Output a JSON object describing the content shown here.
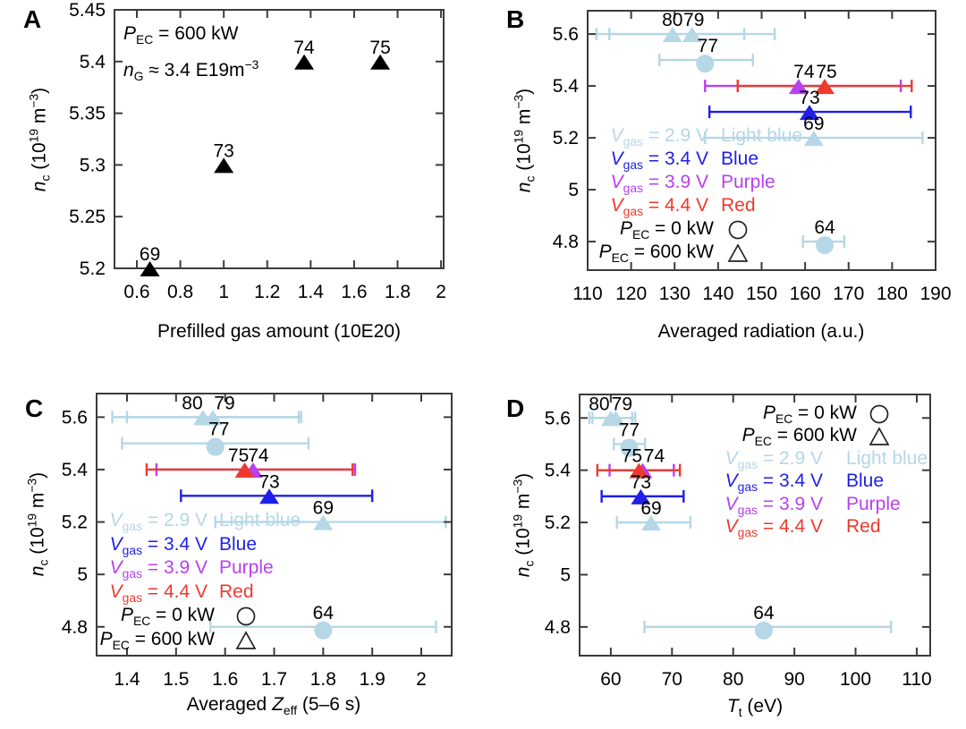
{
  "colors": {
    "black": "#000000",
    "lightblue": "#b5d7e6",
    "blue": "#1f1fe8",
    "purple": "#b840ee",
    "red": "#ee3a2e",
    "axis": "#3b3b3b"
  },
  "chart_data": [
    {
      "panel": "A",
      "type": "scatter",
      "xlabel": "Prefilled gas amount (10E20)",
      "ylabel": "*n*_{c} (10^{19} m^{−3})",
      "xlim": [
        0.497,
        2.012
      ],
      "ylim": [
        5.2,
        5.45
      ],
      "xticks": [
        0.6,
        0.8,
        1.0,
        1.2,
        1.4,
        1.6,
        1.8,
        2.0
      ],
      "xtick_labels": [
        "0.6",
        "0.8",
        "1",
        "1.2",
        "1.4",
        "1.6",
        "1.8",
        "2"
      ],
      "yticks": [
        5.2,
        5.25,
        5.3,
        5.35,
        5.4,
        5.45
      ],
      "ytick_labels": [
        "5.2",
        "5.25",
        "5.3",
        "5.35",
        "5.4",
        "5.45"
      ],
      "annotations": [
        "*P*_{EC} = 600 kW",
        "*n*_{G} ≈ 3.4 E19m^{−3}"
      ],
      "legend": [],
      "points": [
        {
          "label": "69",
          "x": 0.66,
          "y": 5.2,
          "marker": "triangle",
          "color": "black"
        },
        {
          "label": "73",
          "x": 1.0,
          "y": 5.3,
          "marker": "triangle",
          "color": "black"
        },
        {
          "label": "74",
          "x": 1.37,
          "y": 5.4,
          "marker": "triangle",
          "color": "black"
        },
        {
          "label": "75",
          "x": 1.72,
          "y": 5.4,
          "marker": "triangle",
          "color": "black"
        }
      ]
    },
    {
      "panel": "B",
      "type": "scatter",
      "xlabel": "Averaged radiation (a.u.)",
      "ylabel": "*n*_{c} (10^{19} m^{−3})",
      "xlim": [
        110,
        190
      ],
      "ylim": [
        4.69,
        5.69
      ],
      "xticks": [
        110,
        120,
        130,
        140,
        150,
        160,
        170,
        180,
        190
      ],
      "xtick_labels": [
        "110",
        "120",
        "130",
        "140",
        "150",
        "160",
        "170",
        "180",
        "190"
      ],
      "yticks": [
        4.8,
        5.0,
        5.2,
        5.4,
        5.6
      ],
      "ytick_labels": [
        "4.8",
        "5",
        "5.2",
        "5.4",
        "5.6"
      ],
      "annotations": [],
      "legend": [
        {
          "type": "v",
          "label": "*V*_{gas} = 2.9 V",
          "value": "Light blue",
          "color": "lightblue"
        },
        {
          "type": "v",
          "label": "*V*_{gas} = 3.4 V",
          "value": "Blue",
          "color": "blue"
        },
        {
          "type": "v",
          "label": "*V*_{gas} = 3.9 V",
          "value": "Purple",
          "color": "purple"
        },
        {
          "type": "v",
          "label": "*V*_{gas} = 4.4 V",
          "value": "Red",
          "color": "red"
        },
        {
          "type": "p",
          "label": "*P*_{EC} = 0 kW",
          "glyph": "circle",
          "color": "black"
        },
        {
          "type": "p",
          "label": "*P*_{EC} = 600 kW",
          "glyph": "triangle",
          "color": "black"
        }
      ],
      "points": [
        {
          "label": "80",
          "x": 129.5,
          "y": 5.6,
          "err": [
            112,
            146
          ],
          "marker": "triangle",
          "color": "lightblue"
        },
        {
          "label": "79",
          "x": 134,
          "y": 5.6,
          "err": [
            115,
            153
          ],
          "marker": "triangle",
          "color": "lightblue",
          "lox": 2
        },
        {
          "label": "77",
          "x": 137,
          "y": 5.5,
          "err": [
            126.5,
            148
          ],
          "marker": "circle",
          "color": "lightblue",
          "lox": 3
        },
        {
          "label": "74",
          "x": 158.5,
          "y": 5.4,
          "err": [
            137,
            182
          ],
          "marker": "triangle",
          "color": "purple",
          "lox": 6
        },
        {
          "label": "75",
          "x": 164.5,
          "y": 5.4,
          "err": [
            144.5,
            184.5
          ],
          "marker": "triangle",
          "color": "red",
          "lox": 2
        },
        {
          "label": "73",
          "x": 161,
          "y": 5.3,
          "err": [
            138,
            184.3
          ],
          "marker": "triangle",
          "color": "blue"
        },
        {
          "label": "69",
          "x": 162,
          "y": 5.2,
          "err": [
            137,
            187
          ],
          "marker": "triangle",
          "color": "lightblue"
        },
        {
          "label": "64",
          "x": 164.5,
          "y": 4.8,
          "err": [
            159.5,
            169
          ],
          "marker": "circle",
          "color": "lightblue"
        }
      ]
    },
    {
      "panel": "C",
      "type": "scatter",
      "xlabel": "Averaged *Z*_{eff} (5–6 s)",
      "ylabel": "*n*_{c} (10^{19} m^{−3})",
      "xlim": [
        1.338,
        2.062
      ],
      "ylim": [
        4.69,
        5.69
      ],
      "xticks": [
        1.4,
        1.5,
        1.6,
        1.7,
        1.8,
        1.9,
        2.0
      ],
      "xtick_labels": [
        "1.4",
        "1.5",
        "1.6",
        "1.7",
        "1.8",
        "1.9",
        "2"
      ],
      "yticks": [
        4.8,
        5.0,
        5.2,
        5.4,
        5.6
      ],
      "ytick_labels": [
        "4.8",
        "5",
        "5.2",
        "5.4",
        "5.6"
      ],
      "annotations": [],
      "legend": [
        {
          "type": "v",
          "label": "*V*_{gas} = 2.9 V",
          "value": "Light blue",
          "color": "lightblue"
        },
        {
          "type": "v",
          "label": "*V*_{gas} = 3.4 V",
          "value": "Blue",
          "color": "blue"
        },
        {
          "type": "v",
          "label": "*V*_{gas} = 3.9 V",
          "value": "Purple",
          "color": "purple"
        },
        {
          "type": "v",
          "label": "*V*_{gas} = 4.4 V",
          "value": "Red",
          "color": "red"
        },
        {
          "type": "p",
          "label": "*P*_{EC} = 0 kW",
          "glyph": "circle",
          "color": "black"
        },
        {
          "type": "p",
          "label": "*P*_{EC} = 600 kW",
          "glyph": "triangle",
          "color": "black"
        }
      ],
      "points": [
        {
          "label": "80",
          "x": 1.555,
          "y": 5.6,
          "err": [
            1.37,
            1.75
          ],
          "marker": "triangle",
          "color": "lightblue",
          "lox": -12
        },
        {
          "label": "79",
          "x": 1.575,
          "y": 5.6,
          "err": [
            1.4,
            1.755
          ],
          "marker": "triangle",
          "color": "lightblue",
          "lox": 13
        },
        {
          "label": "77",
          "x": 1.58,
          "y": 5.5,
          "err": [
            1.39,
            1.77
          ],
          "marker": "circle",
          "color": "lightblue",
          "lox": 4
        },
        {
          "label": "74",
          "x": 1.657,
          "y": 5.4,
          "err": [
            1.46,
            1.865
          ],
          "marker": "triangle",
          "color": "purple",
          "lox": 6
        },
        {
          "label": "75",
          "x": 1.64,
          "y": 5.4,
          "err": [
            1.44,
            1.86
          ],
          "marker": "triangle",
          "color": "red",
          "lox": -7
        },
        {
          "label": "73",
          "x": 1.69,
          "y": 5.3,
          "err": [
            1.51,
            1.9
          ],
          "marker": "triangle",
          "color": "blue"
        },
        {
          "label": "69",
          "x": 1.8,
          "y": 5.2,
          "err": [
            1.58,
            2.05
          ],
          "marker": "triangle",
          "color": "lightblue"
        },
        {
          "label": "64",
          "x": 1.8,
          "y": 4.8,
          "err": [
            1.57,
            2.03
          ],
          "marker": "circle",
          "color": "lightblue"
        }
      ]
    },
    {
      "panel": "D",
      "type": "scatter",
      "xlabel": "*T*_{t} (eV)",
      "ylabel": "*n*_{c} (10^{19} m^{−3})",
      "xlim": [
        54.9,
        112.2
      ],
      "ylim": [
        4.69,
        5.69
      ],
      "xticks": [
        60,
        70,
        80,
        90,
        100,
        110
      ],
      "xtick_labels": [
        "60",
        "70",
        "80",
        "90",
        "100",
        "110"
      ],
      "yticks": [
        4.8,
        5.0,
        5.2,
        5.4,
        5.6
      ],
      "ytick_labels": [
        "4.8",
        "5",
        "5.2",
        "5.4",
        "5.6"
      ],
      "annotations": [],
      "legend": [
        {
          "type": "p",
          "label": "*P*_{EC} = 0 kW",
          "glyph": "circle",
          "color": "black"
        },
        {
          "type": "p",
          "label": "*P*_{EC} = 600 kW",
          "glyph": "triangle",
          "color": "black"
        },
        {
          "type": "v",
          "label": "*V*_{gas} = 2.9 V",
          "value": "Light blue",
          "color": "lightblue"
        },
        {
          "type": "v",
          "label": "*V*_{gas} = 3.4 V",
          "value": "Blue",
          "color": "blue"
        },
        {
          "type": "v",
          "label": "*V*_{gas} = 3.9 V",
          "value": "Purple",
          "color": "purple"
        },
        {
          "type": "v",
          "label": "*V*_{gas} = 4.4 V",
          "value": "Red",
          "color": "red"
        }
      ],
      "points": [
        {
          "label": "80",
          "x": 60,
          "y": 5.6,
          "err": [
            56.5,
            63.5
          ],
          "marker": "triangle",
          "color": "lightblue",
          "lox": -13
        },
        {
          "label": "79",
          "x": 60.8,
          "y": 5.6,
          "err": [
            57,
            64
          ],
          "marker": "triangle",
          "color": "lightblue",
          "lox": 7
        },
        {
          "label": "77",
          "x": 63,
          "y": 5.5,
          "err": [
            60.5,
            65.6
          ],
          "marker": "circle",
          "color": "lightblue"
        },
        {
          "label": "74",
          "x": 65.2,
          "y": 5.4,
          "err": [
            59.8,
            70.3
          ],
          "marker": "triangle",
          "color": "purple",
          "lox": 13
        },
        {
          "label": "75",
          "x": 64.6,
          "y": 5.4,
          "err": [
            57.8,
            71.3
          ],
          "marker": "triangle",
          "color": "red",
          "lox": -8
        },
        {
          "label": "73",
          "x": 64.9,
          "y": 5.3,
          "err": [
            58.5,
            71.9
          ],
          "marker": "triangle",
          "color": "blue"
        },
        {
          "label": "69",
          "x": 66.6,
          "y": 5.2,
          "err": [
            61,
            73
          ],
          "marker": "triangle",
          "color": "lightblue"
        },
        {
          "label": "64",
          "x": 85,
          "y": 4.8,
          "err": [
            65.5,
            105.8
          ],
          "marker": "circle",
          "color": "lightblue"
        }
      ]
    }
  ]
}
